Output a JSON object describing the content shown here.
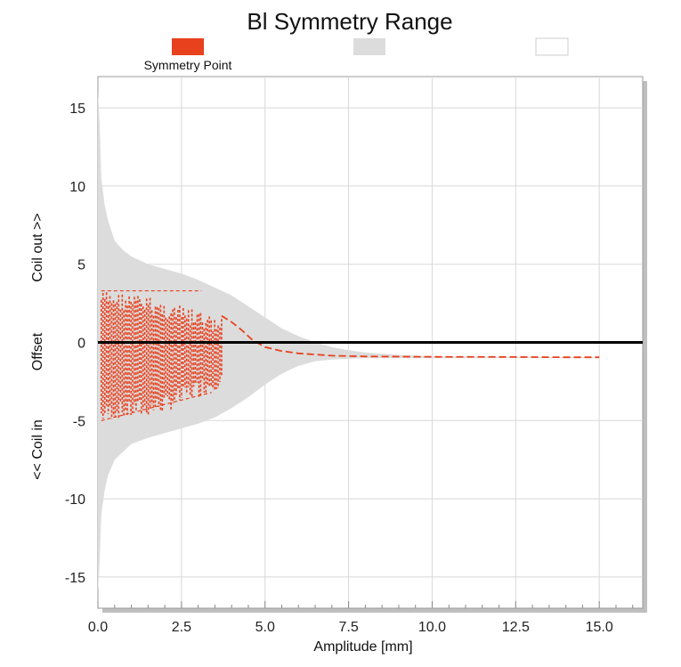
{
  "chart_data": {
    "type": "area",
    "title": "Bl Symmetry Range",
    "xlabel": "Amplitude [mm]",
    "ylabel_parts": [
      "<< Coil in",
      "Offset",
      "Coil out >>"
    ],
    "xlim": [
      0,
      16.3
    ],
    "ylim": [
      -17,
      17
    ],
    "xticks": [
      "0.0",
      "2.5",
      "5.0",
      "7.5",
      "10.0",
      "12.5",
      "15.0"
    ],
    "xtick_values": [
      0,
      2.5,
      5,
      7.5,
      10,
      12.5,
      15
    ],
    "yticks": [
      "15",
      "10",
      "5",
      "0",
      "-5",
      "-10",
      "-15"
    ],
    "ytick_values": [
      15,
      10,
      5,
      0,
      -5,
      -10,
      -15
    ],
    "grid": true,
    "legend": [
      {
        "label": "Symmetry Point",
        "color": "#e8411e"
      },
      {
        "label": "",
        "color": "#dcdcdc"
      },
      {
        "label": "",
        "color": "#ffffff"
      }
    ],
    "series": [
      {
        "name": "Symmetry Point",
        "color": "#e8411e",
        "style": "dashed",
        "x": [
          3.7,
          4.0,
          4.3,
          4.6,
          5.0,
          5.5,
          6.0,
          7.0,
          8.0,
          10.0,
          12.0,
          14.0,
          15.0
        ],
        "y": [
          1.7,
          1.3,
          0.8,
          0.2,
          -0.3,
          -0.55,
          -0.7,
          -0.85,
          -0.9,
          -0.92,
          -0.93,
          -0.95,
          -0.95
        ]
      }
    ],
    "scatter_region": {
      "color": "#e8411e",
      "x_range": [
        0.1,
        3.7
      ],
      "y_top": [
        3.3,
        3.3,
        3.2,
        3.1,
        3.0,
        2.8,
        2.6,
        2.4,
        2.2,
        2.0,
        1.7,
        1.5
      ],
      "y_bottom": [
        -5.2,
        -5.0,
        -5.0,
        -4.9,
        -4.8,
        -4.7,
        -4.5,
        -4.2,
        -3.8,
        -3.5,
        -3.2,
        -3.0
      ]
    },
    "range_band": {
      "color": "#dcdcdc",
      "x": [
        0.0,
        0.05,
        0.1,
        0.2,
        0.3,
        0.5,
        0.75,
        1.0,
        1.5,
        2.0,
        2.5,
        3.0,
        3.5,
        4.0,
        4.5,
        5.0,
        5.5,
        6.0,
        6.5,
        7.0,
        7.5,
        8.0,
        9.0,
        10.0,
        11.0,
        12.0,
        13.0,
        14.0,
        15.0
      ],
      "upper": [
        16.0,
        14.0,
        10.5,
        8.8,
        7.8,
        6.5,
        5.9,
        5.5,
        5.0,
        4.7,
        4.4,
        4.0,
        3.5,
        3.0,
        2.3,
        1.6,
        0.9,
        0.4,
        0.0,
        -0.3,
        -0.5,
        -0.65,
        -0.8,
        -0.88,
        -0.9,
        -0.92,
        -0.93,
        -0.94,
        -0.95
      ],
      "lower": [
        -16.0,
        -14.0,
        -11.0,
        -9.5,
        -8.5,
        -7.5,
        -7.0,
        -6.5,
        -6.1,
        -5.8,
        -5.5,
        -5.2,
        -4.8,
        -4.2,
        -3.5,
        -2.7,
        -2.0,
        -1.5,
        -1.2,
        -1.1,
        -1.05,
        -1.0,
        -1.0,
        -1.0,
        -1.0,
        -1.0,
        -1.0,
        -1.0,
        -1.0
      ]
    }
  }
}
